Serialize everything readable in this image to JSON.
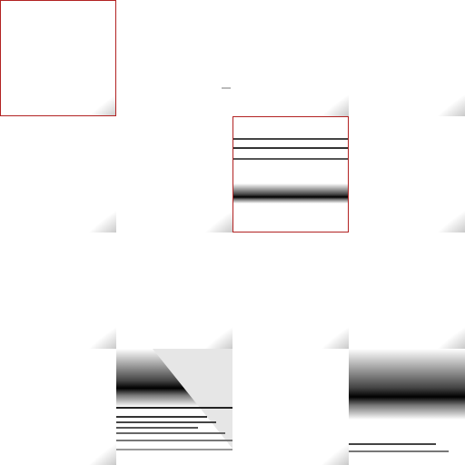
{
  "grid": {
    "rows": 4,
    "cols": 4,
    "selection_color": "#b22222",
    "tiles": [
      {
        "variant": "arc",
        "selected": true
      },
      {
        "variant": "blank",
        "selected": false
      },
      {
        "variant": "arc",
        "selected": false
      },
      {
        "variant": "arc",
        "selected": false
      },
      {
        "variant": "arc",
        "selected": false
      },
      {
        "variant": "arc",
        "selected": false
      },
      {
        "variant": "horizontal-lines",
        "selected": true
      },
      {
        "variant": "arc",
        "selected": false
      },
      {
        "variant": "arc",
        "selected": false
      },
      {
        "variant": "arc",
        "selected": false
      },
      {
        "variant": "arc",
        "selected": false
      },
      {
        "variant": "arc",
        "selected": false
      },
      {
        "variant": "arc",
        "selected": false
      },
      {
        "variant": "stretched-streaks",
        "selected": false
      },
      {
        "variant": "arc",
        "selected": false
      },
      {
        "variant": "band-streaks",
        "selected": false
      }
    ]
  }
}
